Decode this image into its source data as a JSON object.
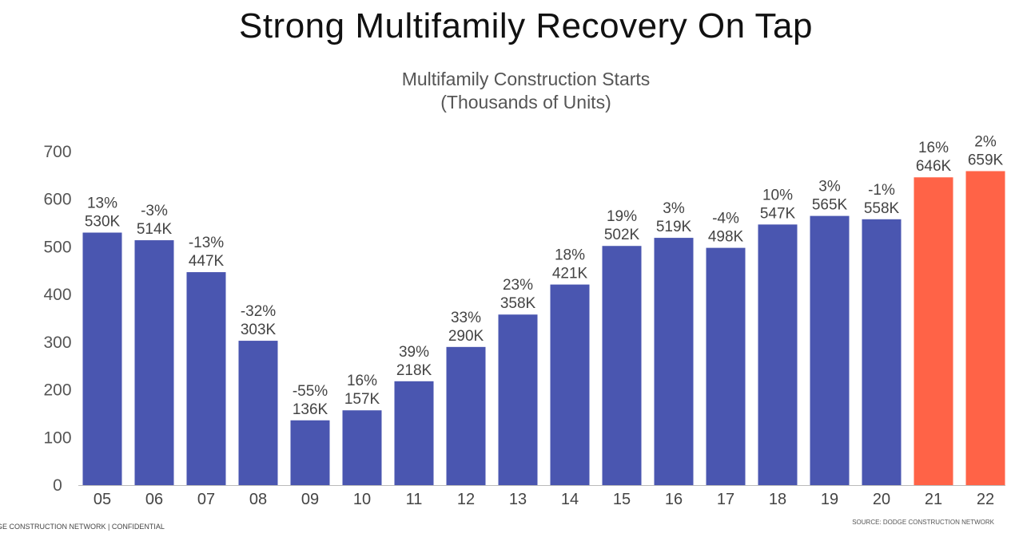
{
  "header": {
    "title": "Strong Multifamily Recovery On Tap"
  },
  "chart_data": {
    "type": "bar",
    "title": "Multifamily Construction Starts",
    "subtitle": "(Thousands of Units)",
    "categories": [
      "05",
      "06",
      "07",
      "08",
      "09",
      "10",
      "11",
      "12",
      "13",
      "14",
      "15",
      "16",
      "17",
      "18",
      "19",
      "20",
      "21",
      "22"
    ],
    "values": [
      530,
      514,
      447,
      303,
      136,
      157,
      218,
      290,
      358,
      421,
      502,
      519,
      498,
      547,
      565,
      558,
      646,
      659
    ],
    "value_labels": [
      "530K",
      "514K",
      "447K",
      "303K",
      "136K",
      "157K",
      "218K",
      "290K",
      "358K",
      "421K",
      "502K",
      "519K",
      "498K",
      "547K",
      "565K",
      "558K",
      "646K",
      "659K"
    ],
    "pct_labels": [
      "13%",
      "-3%",
      "-13%",
      "-32%",
      "-55%",
      "16%",
      "39%",
      "33%",
      "23%",
      "18%",
      "19%",
      "3%",
      "-4%",
      "10%",
      "3%",
      "-1%",
      "16%",
      "2%"
    ],
    "bar_colors": [
      "#4a56b0",
      "#4a56b0",
      "#4a56b0",
      "#4a56b0",
      "#4a56b0",
      "#4a56b0",
      "#4a56b0",
      "#4a56b0",
      "#4a56b0",
      "#4a56b0",
      "#4a56b0",
      "#4a56b0",
      "#4a56b0",
      "#4a56b0",
      "#4a56b0",
      "#4a56b0",
      "#ff6347",
      "#ff6347"
    ],
    "ylim": [
      0,
      700
    ],
    "yticks": [
      0,
      100,
      200,
      300,
      400,
      500,
      600,
      700
    ],
    "xlabel": "",
    "ylabel": "",
    "grid": false,
    "legend": "none"
  },
  "footer": {
    "left": "GE CONSTRUCTION NETWORK | CONFIDENTIAL",
    "source": "SOURCE: DODGE CONSTRUCTION NETWORK"
  }
}
